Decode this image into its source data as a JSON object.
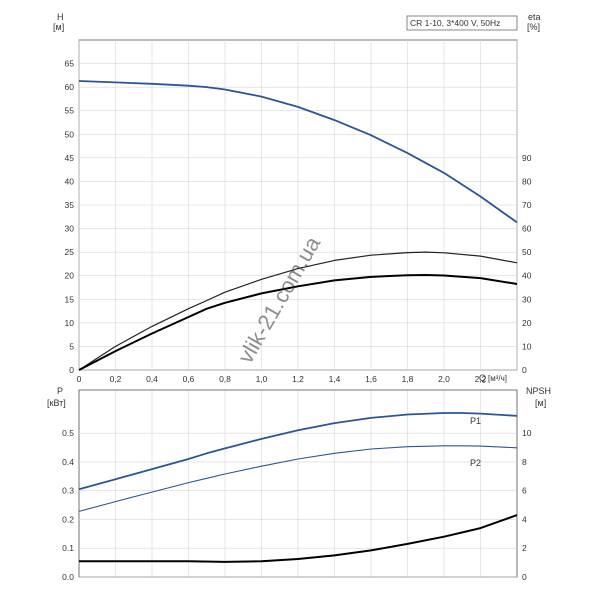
{
  "chart_data": [
    {
      "type": "line",
      "legend_box": "CR 1-10, 3*400 V, 50Hz",
      "watermark": "vlik-21.com.ua",
      "ylabel_left": "H",
      "yunit_left": "[м]",
      "ylabel_right": "eta",
      "yunit_right": "[%]",
      "xlabel": "Q",
      "xunit": "[м³/ч]",
      "xlim": [
        0,
        2.4
      ],
      "x_ticks": [
        "0",
        "0,2",
        "0,4",
        "0,6",
        "0,8",
        "1,0",
        "1,2",
        "1,4",
        "1,6",
        "1,8",
        "2,0",
        "2,2"
      ],
      "ylim_left": [
        0,
        70
      ],
      "y_ticks_left": [
        "0",
        "5",
        "10",
        "15",
        "20",
        "25",
        "30",
        "35",
        "40",
        "45",
        "50",
        "55",
        "60",
        "65"
      ],
      "ylim_right": [
        0,
        140
      ],
      "y_ticks_right": [
        "0",
        "10",
        "20",
        "30",
        "40",
        "50",
        "60",
        "70",
        "80",
        "90"
      ],
      "grid": true,
      "series": [
        {
          "axis": "left",
          "color": "#2a5597",
          "x": [
            0,
            0.2,
            0.4,
            0.6,
            0.7,
            0.8,
            1.0,
            1.2,
            1.4,
            1.6,
            1.8,
            2.0,
            2.2,
            2.4
          ],
          "y": [
            61.3,
            61.0,
            60.7,
            60.3,
            60.0,
            59.5,
            58.0,
            55.8,
            53.0,
            49.8,
            46.0,
            41.8,
            36.8,
            31.3
          ]
        },
        {
          "axis": "right",
          "color": "#222222",
          "x": [
            0,
            0.2,
            0.4,
            0.6,
            0.7,
            0.8,
            1.0,
            1.2,
            1.4,
            1.6,
            1.8,
            1.9,
            2.0,
            2.2,
            2.4
          ],
          "y": [
            0,
            10,
            18.5,
            26,
            29.5,
            33,
            38.5,
            43,
            46.5,
            48.7,
            49.8,
            50,
            49.7,
            48.3,
            45.5
          ]
        },
        {
          "axis": "right",
          "color": "#000000",
          "x": [
            0,
            0.2,
            0.4,
            0.6,
            0.7,
            0.8,
            1.0,
            1.2,
            1.4,
            1.6,
            1.8,
            1.9,
            2.0,
            2.2,
            2.4
          ],
          "y": [
            0,
            8,
            15.5,
            22.5,
            26,
            28.5,
            32.5,
            35.5,
            38,
            39.5,
            40.2,
            40.3,
            40.1,
            39,
            36.5
          ]
        }
      ]
    },
    {
      "type": "line",
      "ylabel_left": "P",
      "yunit_left": "[кВт]",
      "ylabel_right": "NPSH",
      "yunit_right": "[м]",
      "xlim": [
        0,
        2.4
      ],
      "ylim_left": [
        0,
        0.65
      ],
      "y_ticks_left": [
        "0.0",
        "0.1",
        "0.2",
        "0.3",
        "0.4",
        "0.5"
      ],
      "ylim_right": [
        0,
        13
      ],
      "y_ticks_right": [
        "0",
        "2",
        "4",
        "6",
        "8",
        "10"
      ],
      "grid": true,
      "series": [
        {
          "name": "P1",
          "axis": "left",
          "color": "#2a5597",
          "x": [
            0,
            0.2,
            0.4,
            0.6,
            0.7,
            0.8,
            1.0,
            1.2,
            1.4,
            1.6,
            1.8,
            2.0,
            2.1,
            2.2,
            2.4
          ],
          "y": [
            0.305,
            0.34,
            0.375,
            0.41,
            0.43,
            0.447,
            0.48,
            0.51,
            0.535,
            0.553,
            0.565,
            0.57,
            0.57,
            0.568,
            0.56
          ]
        },
        {
          "name": "P2",
          "axis": "left",
          "color": "#2a5597",
          "x": [
            0,
            0.2,
            0.4,
            0.6,
            0.7,
            0.8,
            1.0,
            1.2,
            1.4,
            1.6,
            1.8,
            2.0,
            2.1,
            2.2,
            2.4
          ],
          "y": [
            0.228,
            0.262,
            0.295,
            0.328,
            0.343,
            0.358,
            0.385,
            0.41,
            0.43,
            0.445,
            0.453,
            0.456,
            0.456,
            0.455,
            0.449
          ]
        },
        {
          "axis": "right",
          "color": "#000000",
          "x": [
            0,
            0.2,
            0.4,
            0.6,
            0.8,
            1.0,
            1.2,
            1.4,
            1.6,
            1.8,
            2.0,
            2.2,
            2.4
          ],
          "y": [
            1.1,
            1.1,
            1.1,
            1.1,
            1.05,
            1.1,
            1.25,
            1.5,
            1.85,
            2.3,
            2.8,
            3.4,
            4.3
          ]
        }
      ]
    }
  ],
  "panels_text": {
    "p2_series_labels": [
      "P1",
      "P2"
    ]
  }
}
